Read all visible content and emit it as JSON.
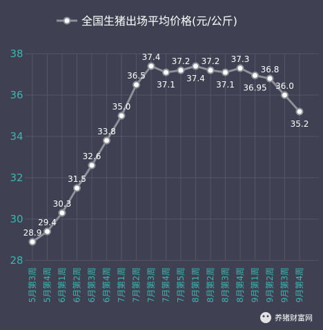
{
  "chart_data": {
    "type": "line",
    "title": "",
    "xlabel": "",
    "ylabel": "",
    "ylim": [
      28,
      38
    ],
    "yticks": [
      28,
      30,
      32,
      34,
      36,
      38
    ],
    "grid": true,
    "legend": "top",
    "categories": [
      "5月第3周",
      "5月第4周",
      "6月第1周",
      "6月第2周",
      "6月第3周",
      "6月第4周",
      "7月第1周",
      "7月第2周",
      "7月第3周",
      "7月第4周",
      "7月第5周",
      "8月第1周",
      "8月第2周",
      "8月第3周",
      "8月第4周",
      "9月第1周",
      "9月第2周",
      "9月第3周",
      "9月第4周"
    ],
    "series": [
      {
        "name": "全国生猪出场平均价格(元/公斤)",
        "values": [
          28.9,
          29.4,
          30.3,
          31.5,
          32.6,
          33.8,
          35.0,
          36.5,
          37.4,
          37.1,
          37.2,
          37.4,
          37.2,
          37.1,
          37.3,
          36.95,
          36.8,
          36.0,
          35.2
        ],
        "labels": [
          "28.9",
          "29.4",
          "30.3",
          "31.5",
          "32.6",
          "33.8",
          "35.0",
          "36.5",
          "37.4",
          "37.1",
          "37.2",
          "37.4",
          "37.2",
          "37.1",
          "37.3",
          "36.95",
          "36.8",
          "36.0",
          "35.2"
        ],
        "color": "#8f9199"
      }
    ]
  },
  "watermark": "养猪财富网"
}
